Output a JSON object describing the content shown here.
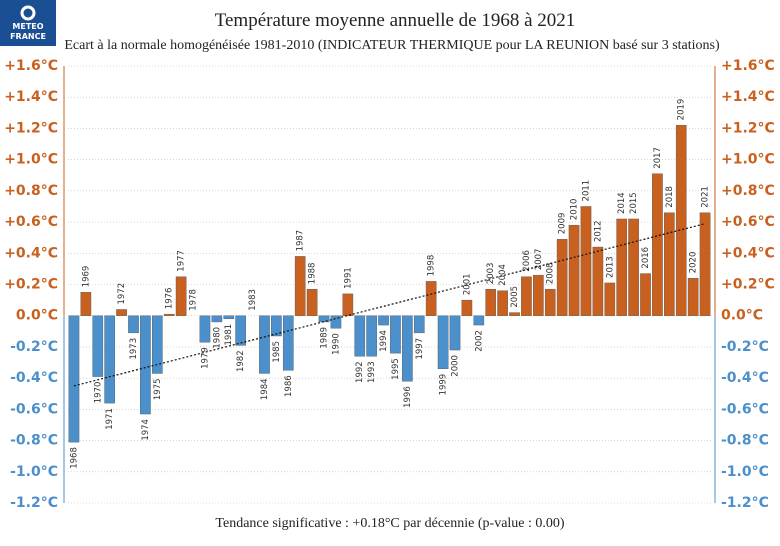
{
  "chart_data": {
    "type": "bar",
    "logo": [
      "METEO",
      "FRANCE"
    ],
    "title": "Température moyenne annuelle de 1968 à 2021",
    "subtitle": "Ecart à la normale homogénéisée 1981-2010 (INDICATEUR THERMIQUE pour LA REUNION basé sur 3 stations)",
    "footer": "Tendance significative : +0.18°C par décennie (p-value : 0.00)",
    "categories": [
      "1968",
      "1969",
      "1970",
      "1971",
      "1972",
      "1973",
      "1974",
      "1975",
      "1976",
      "1977",
      "1978",
      "1979",
      "1980",
      "1981",
      "1982",
      "1983",
      "1984",
      "1985",
      "1986",
      "1987",
      "1988",
      "1989",
      "1990",
      "1991",
      "1992",
      "1993",
      "1994",
      "1995",
      "1996",
      "1997",
      "1998",
      "1999",
      "2000",
      "2001",
      "2002",
      "2003",
      "2004",
      "2005",
      "2006",
      "2007",
      "2008",
      "2009",
      "2010",
      "2011",
      "2012",
      "2013",
      "2014",
      "2015",
      "2016",
      "2017",
      "2018",
      "2019",
      "2020",
      "2021"
    ],
    "values": [
      -0.81,
      0.15,
      -0.39,
      -0.56,
      0.04,
      -0.11,
      -0.63,
      -0.37,
      0.01,
      0.25,
      0.0,
      -0.17,
      -0.04,
      -0.02,
      -0.19,
      0.0,
      -0.37,
      -0.13,
      -0.35,
      0.38,
      0.17,
      -0.04,
      -0.08,
      0.14,
      -0.26,
      -0.26,
      -0.06,
      -0.24,
      -0.42,
      -0.11,
      0.22,
      -0.34,
      -0.22,
      0.1,
      -0.06,
      0.17,
      0.16,
      0.02,
      0.25,
      0.26,
      0.17,
      0.49,
      0.58,
      0.7,
      0.44,
      0.21,
      0.62,
      0.62,
      0.27,
      0.91,
      0.66,
      1.22,
      0.24,
      0.66
    ],
    "positive_color": "#c8611f",
    "negative_color": "#4b8fcb",
    "trend": {
      "start": -0.45,
      "end": 0.59
    },
    "ylim": [
      -1.2,
      1.6
    ],
    "yticks": [
      {
        "value": -1.2,
        "label": "-1.2°C"
      },
      {
        "value": -1.0,
        "label": "-1.0°C"
      },
      {
        "value": -0.8,
        "label": "-0.8°C"
      },
      {
        "value": -0.6,
        "label": "-0.6°C"
      },
      {
        "value": -0.4,
        "label": "-0.4°C"
      },
      {
        "value": -0.2,
        "label": "-0.2°C"
      },
      {
        "value": 0.0,
        "label": "0.0°C"
      },
      {
        "value": 0.2,
        "label": "+0.2°C"
      },
      {
        "value": 0.4,
        "label": "+0.4°C"
      },
      {
        "value": 0.6,
        "label": "+0.6°C"
      },
      {
        "value": 0.8,
        "label": "+0.8°C"
      },
      {
        "value": 1.0,
        "label": "+1.0°C"
      },
      {
        "value": 1.2,
        "label": "+1.2°C"
      },
      {
        "value": 1.4,
        "label": "+1.4°C"
      },
      {
        "value": 1.6,
        "label": "+1.6°C"
      }
    ],
    "grid": true
  }
}
